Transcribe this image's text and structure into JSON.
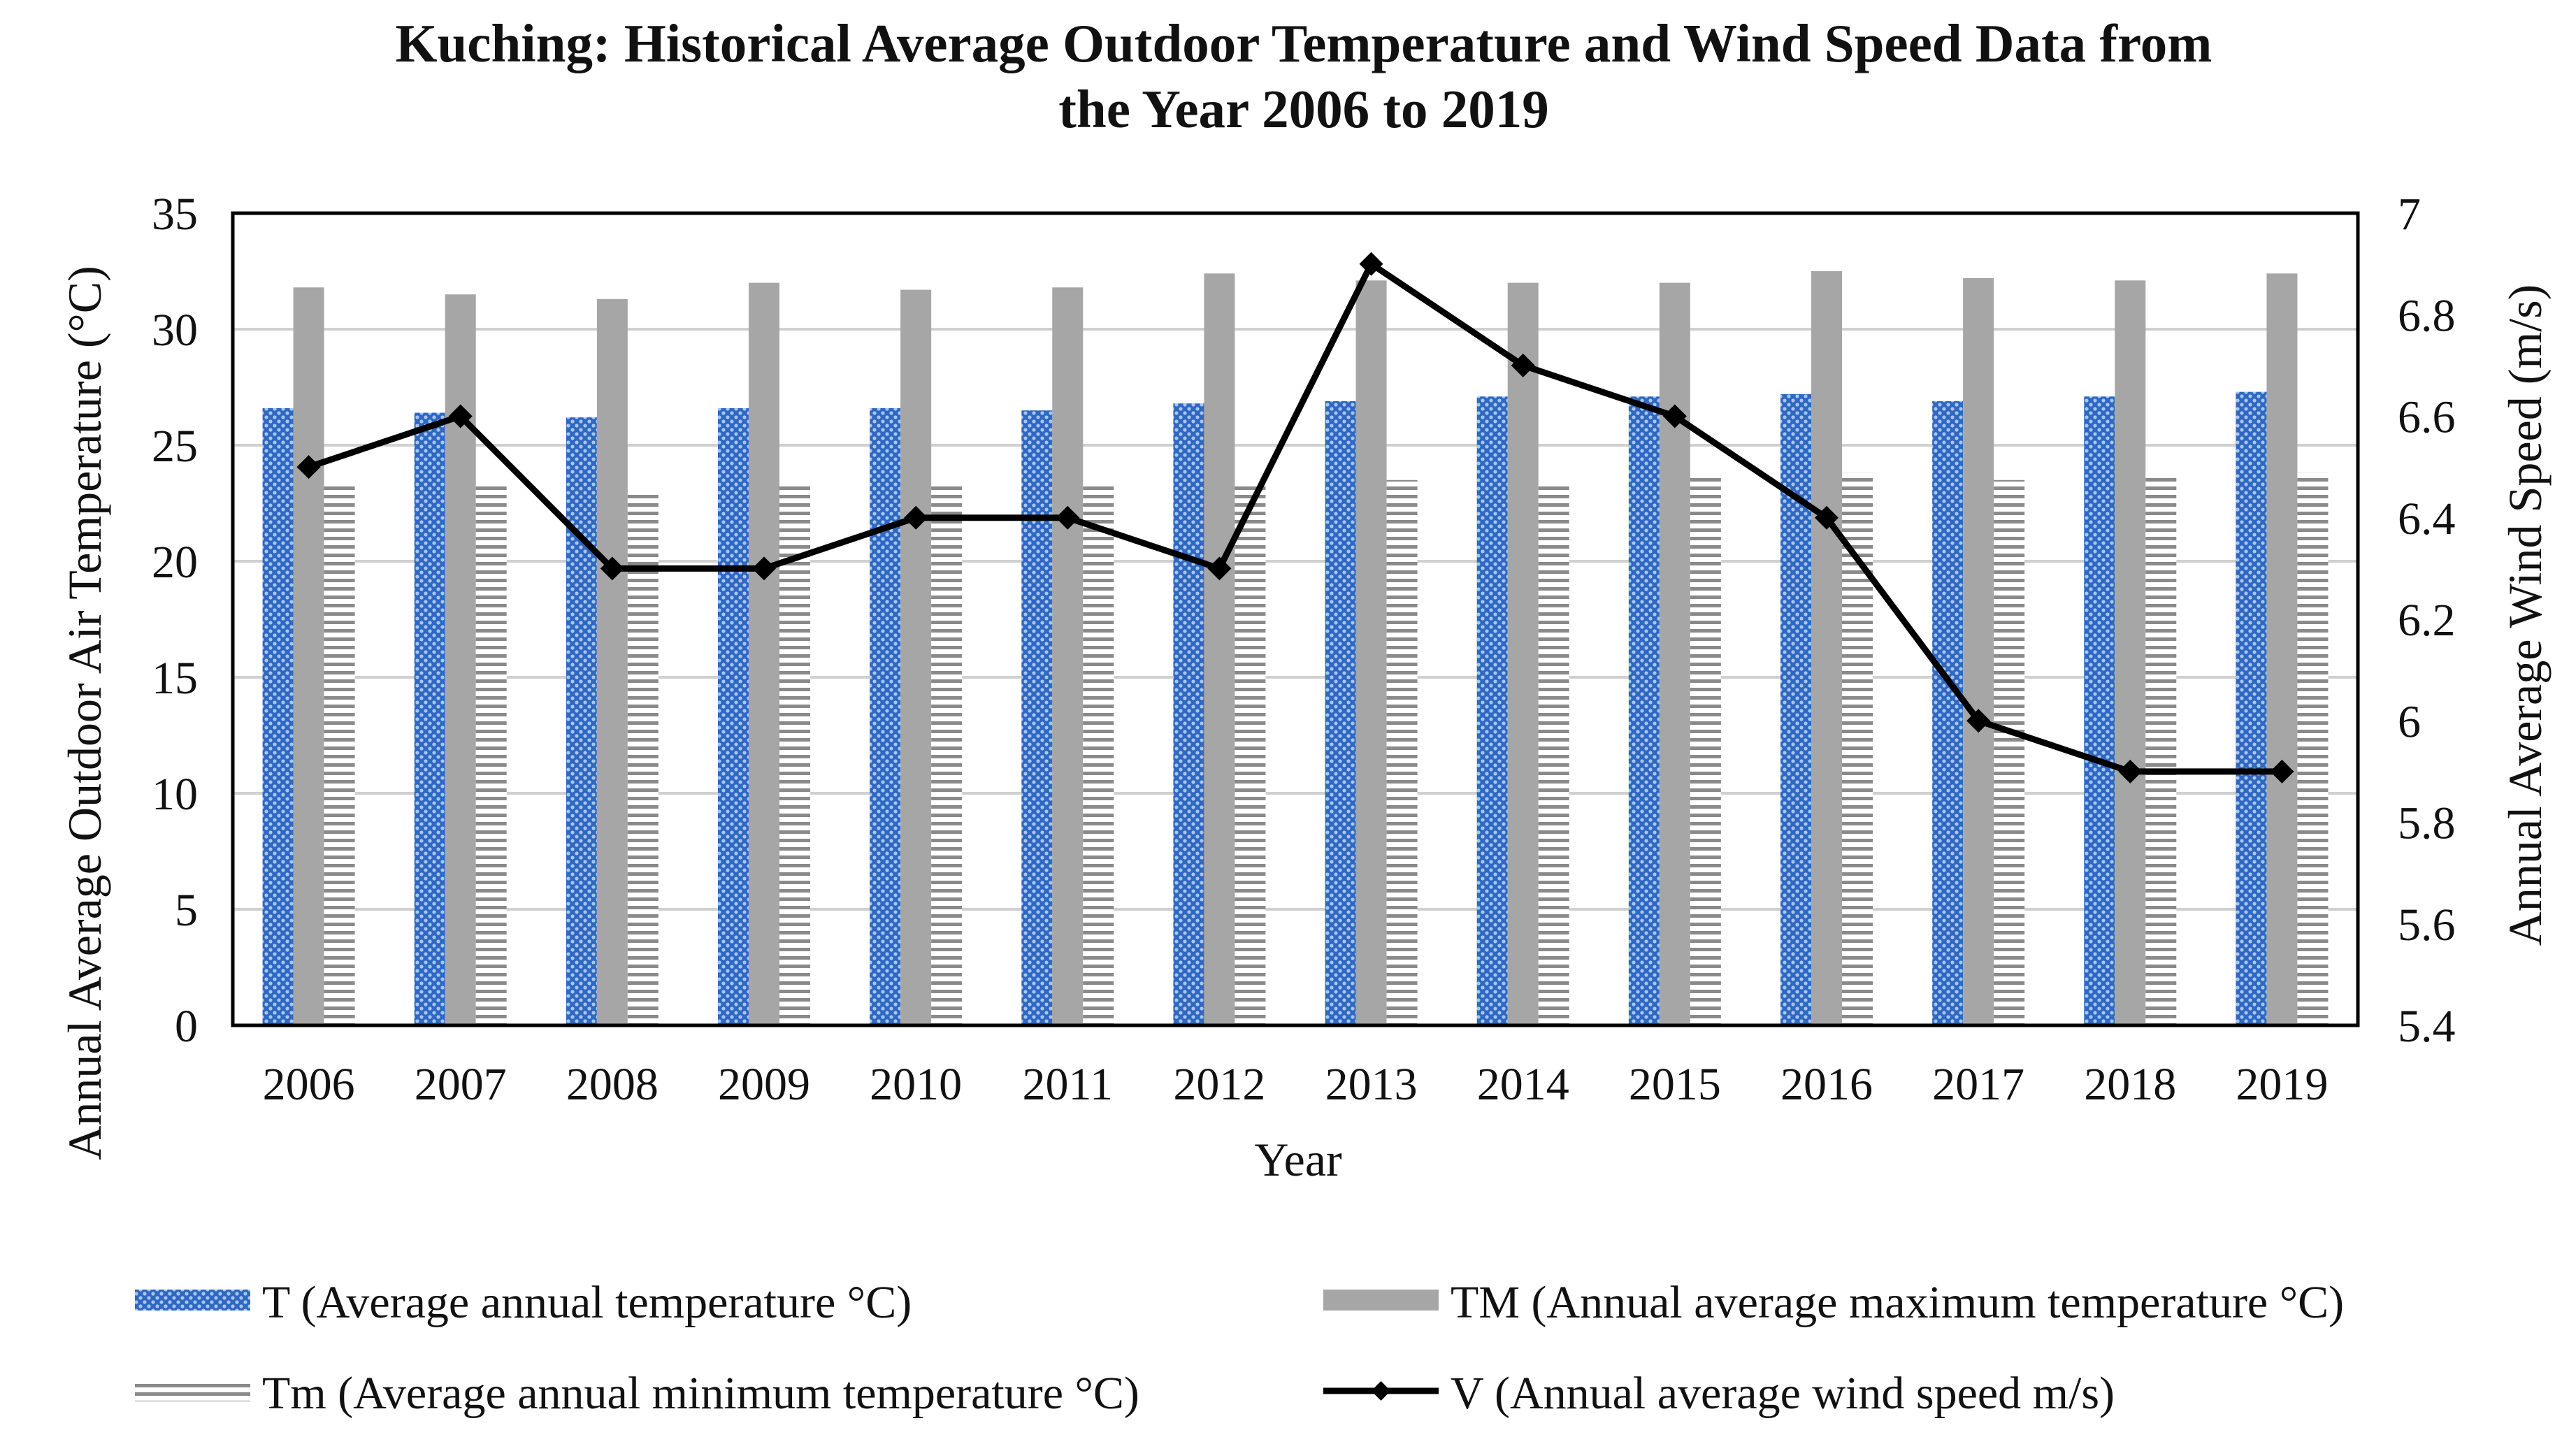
{
  "chart_data": {
    "type": "bar+line",
    "title": "Kuching: Historical Average Outdoor Temperature and Wind Speed Data from the Year 2006 to 2019",
    "title_lines": [
      "Kuching: Historical Average Outdoor Temperature and Wind Speed Data from",
      "the Year 2006 to 2019"
    ],
    "xlabel": "Year",
    "ylabel_left": "Annual Average Outdoor Air Temperature (°C)",
    "ylabel_right": "Annual Average Wind Speed (m/s)",
    "categories": [
      "2006",
      "2007",
      "2008",
      "2009",
      "2010",
      "2011",
      "2012",
      "2013",
      "2014",
      "2015",
      "2016",
      "2017",
      "2018",
      "2019"
    ],
    "ylim_left": [
      0,
      35
    ],
    "yticks_left": [
      0,
      5,
      10,
      15,
      20,
      25,
      30,
      35
    ],
    "ylim_right": [
      5.4,
      7
    ],
    "yticks_right": [
      "5.4",
      "5.6",
      "5.8",
      "6",
      "6.2",
      "6.4",
      "6.6",
      "6.8",
      "7"
    ],
    "grid": true,
    "legend_position": "bottom",
    "series": [
      {
        "name": "T (Average annual temperature °C)",
        "kind": "bar",
        "axis": "left",
        "color": "#3a73c8",
        "pattern": "dotted",
        "values": [
          26.6,
          26.4,
          26.2,
          26.6,
          26.6,
          26.5,
          26.8,
          26.9,
          27.1,
          27.1,
          27.2,
          26.9,
          27.1,
          27.3
        ]
      },
      {
        "name": "TM (Annual average maximum temperature °C)",
        "kind": "bar",
        "axis": "left",
        "color": "#a6a6a6",
        "pattern": "solid",
        "values": [
          31.8,
          31.5,
          31.3,
          32.0,
          31.7,
          31.8,
          32.4,
          32.1,
          32.0,
          32.0,
          32.5,
          32.2,
          32.1,
          32.4
        ]
      },
      {
        "name": "Tm (Average annual minimum temperature °C)",
        "kind": "bar",
        "axis": "left",
        "color": "#8c8c8c",
        "pattern": "horizontal-stripes",
        "values": [
          23.3,
          23.3,
          22.9,
          23.3,
          23.3,
          23.3,
          23.3,
          23.5,
          23.3,
          23.6,
          23.8,
          23.5,
          23.6,
          23.8
        ]
      },
      {
        "name": "V (Annual average wind speed m/s)",
        "kind": "line",
        "axis": "right",
        "color": "#000000",
        "marker": "diamond",
        "values": [
          6.5,
          6.6,
          6.3,
          6.3,
          6.4,
          6.4,
          6.3,
          6.9,
          6.7,
          6.6,
          6.4,
          6.0,
          5.9,
          5.9
        ]
      }
    ]
  }
}
